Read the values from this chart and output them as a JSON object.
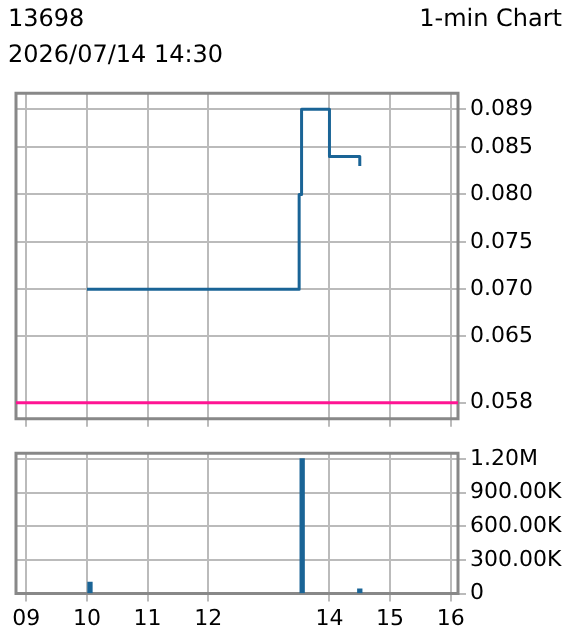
{
  "chart_data": [
    {
      "type": "step",
      "title": "13698",
      "subtitle": "2026/07/14 14:30",
      "annotations": [
        "1-min Chart"
      ],
      "x": [
        10.0,
        13.5,
        13.54,
        14.0,
        14.5
      ],
      "series": [
        {
          "color": "#1a6496",
          "values": [
            0.07,
            0.08,
            0.089,
            0.084,
            0.083
          ]
        }
      ],
      "xlim": [
        8.83,
        16.12
      ],
      "xticks": [
        9,
        10,
        11,
        12,
        14,
        15,
        16
      ],
      "ylim": [
        0.0563,
        0.0907
      ],
      "yticks": [
        0.058,
        0.065,
        {
          "value": 0.07,
          "label": "0.070"
        },
        0.075,
        {
          "value": 0.08,
          "label": "0.080"
        },
        0.085,
        0.089
      ],
      "ref_lines": [
        {
          "axis": "y",
          "value": 0.058,
          "color": "#ff1493"
        }
      ],
      "grid": true,
      "legend": false,
      "tick_labels": "y"
    },
    {
      "type": "bar",
      "x": [
        10.05,
        13.55,
        14.5
      ],
      "series": [
        {
          "color": "#1a6496",
          "values": [
            100000,
            1200000,
            40000
          ]
        }
      ],
      "xlim": [
        8.83,
        16.12
      ],
      "xticks": [
        {
          "value": 9,
          "label": "09"
        },
        10,
        11,
        12,
        14,
        15,
        16
      ],
      "ylim": [
        0,
        1250000
      ],
      "yticks": [
        {
          "value": 0,
          "label": "0"
        },
        {
          "value": 300000,
          "label": "300.00K"
        },
        {
          "value": 600000,
          "label": "600.00K"
        },
        {
          "value": 900000,
          "label": "900.00K"
        },
        {
          "value": 1200000,
          "label": "1.20M"
        }
      ],
      "grid": true,
      "legend": false
    }
  ]
}
